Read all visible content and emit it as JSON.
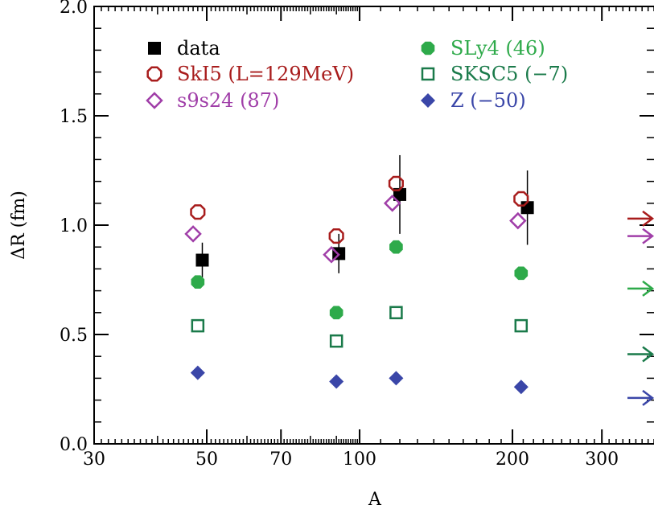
{
  "chart_data": {
    "type": "scatter",
    "xlabel": "A",
    "ylabel": "ΔR (fm)",
    "xscale": "log",
    "xlim": [
      30,
      380
    ],
    "ylim": [
      0.0,
      2.0
    ],
    "x_ticks": [
      30,
      50,
      70,
      100,
      200,
      300
    ],
    "x_tick_labels": [
      "30",
      "50",
      "70",
      "100",
      "200",
      "300"
    ],
    "y_ticks": [
      0.0,
      0.5,
      1.0,
      1.5,
      2.0
    ],
    "y_tick_labels": [
      "0.0",
      "0.5",
      "1.0",
      "1.5",
      "2.0"
    ],
    "legend_position": "top-left, two columns",
    "series": [
      {
        "name": "data",
        "marker": "filled-square",
        "color": "#000000",
        "points": [
          {
            "x": 49,
            "y": 0.84,
            "yerr": 0.08
          },
          {
            "x": 91,
            "y": 0.87,
            "yerr": 0.09
          },
          {
            "x": 120,
            "y": 1.14,
            "yerr": 0.18
          },
          {
            "x": 214,
            "y": 1.08,
            "yerr": 0.17
          }
        ]
      },
      {
        "name": "SkI5 (L=129MeV)",
        "marker": "open-octagon",
        "color": "#a81c1c",
        "points": [
          {
            "x": 48,
            "y": 1.06
          },
          {
            "x": 90,
            "y": 0.95
          },
          {
            "x": 118,
            "y": 1.19
          },
          {
            "x": 208,
            "y": 1.12
          }
        ],
        "limit_arrow": 1.03
      },
      {
        "name": "s9s24 (87)",
        "marker": "open-diamond",
        "color": "#a03ea8",
        "points": [
          {
            "x": 47,
            "y": 0.96
          },
          {
            "x": 88,
            "y": 0.865
          },
          {
            "x": 116,
            "y": 1.1
          },
          {
            "x": 205,
            "y": 1.02
          }
        ],
        "limit_arrow": 0.95
      },
      {
        "name": "SLy4 (46)",
        "marker": "filled-octagon",
        "color": "#2eaa4a",
        "points": [
          {
            "x": 48,
            "y": 0.74
          },
          {
            "x": 90,
            "y": 0.6
          },
          {
            "x": 118,
            "y": 0.9
          },
          {
            "x": 208,
            "y": 0.78
          }
        ],
        "limit_arrow": 0.71
      },
      {
        "name": "SKSC5 (−7)",
        "marker": "open-square",
        "color": "#1a7a4a",
        "points": [
          {
            "x": 48,
            "y": 0.54
          },
          {
            "x": 90,
            "y": 0.47
          },
          {
            "x": 118,
            "y": 0.6
          },
          {
            "x": 208,
            "y": 0.54
          }
        ],
        "limit_arrow": 0.41
      },
      {
        "name": "Z (−50)",
        "marker": "filled-diamond",
        "color": "#3a46a8",
        "points": [
          {
            "x": 48,
            "y": 0.325
          },
          {
            "x": 90,
            "y": 0.285
          },
          {
            "x": 118,
            "y": 0.3
          },
          {
            "x": 208,
            "y": 0.26
          }
        ],
        "limit_arrow": 0.21
      }
    ]
  }
}
